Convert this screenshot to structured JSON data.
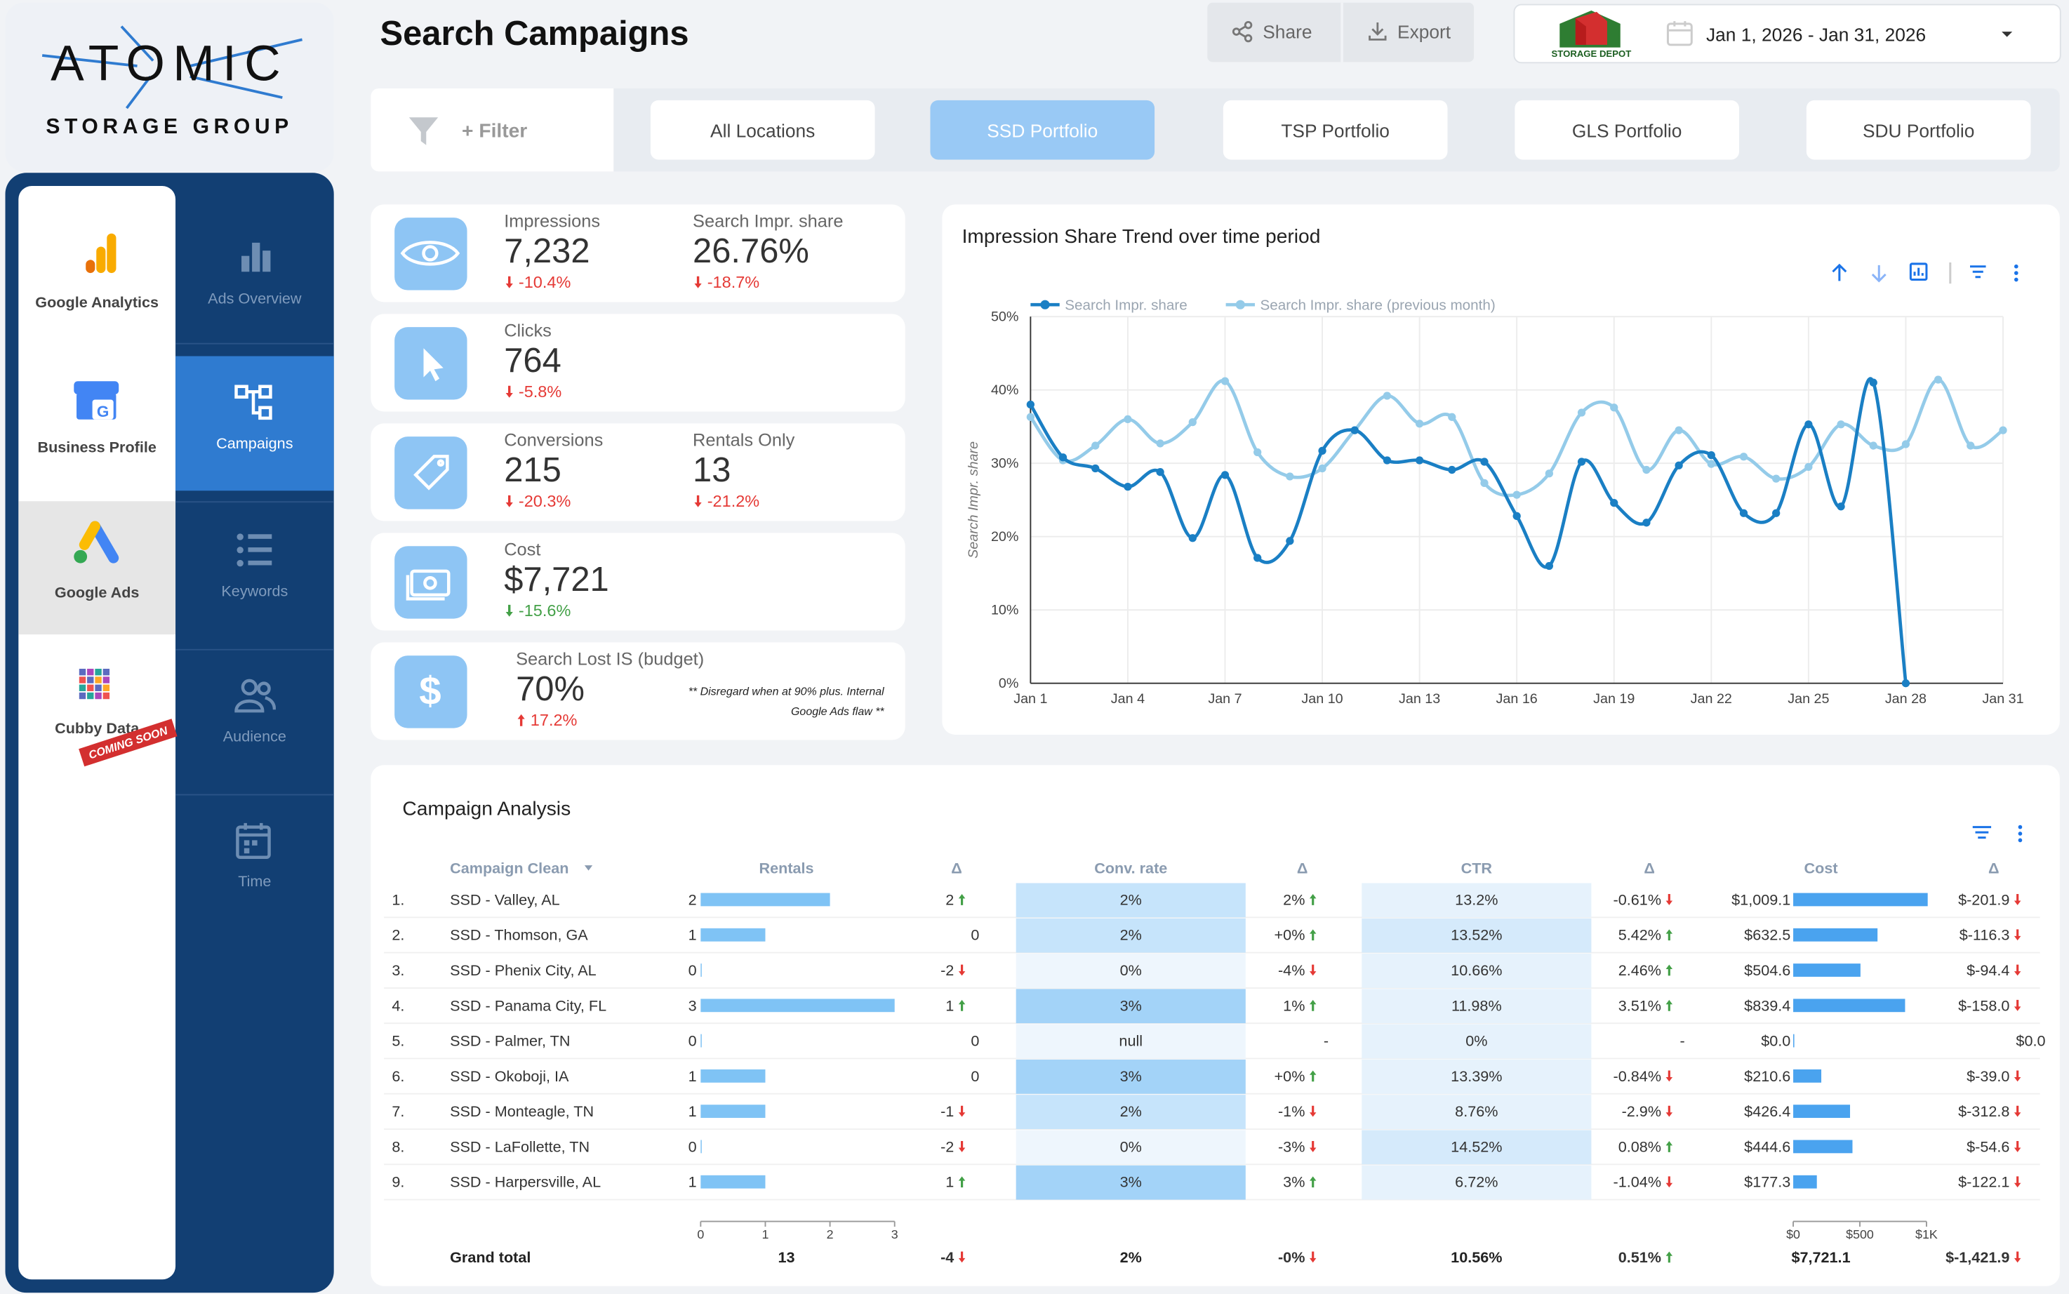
{
  "sidebar": {
    "logo": {
      "brand": "ATOMIC",
      "subtitle": "STORAGE GROUP"
    },
    "apps": [
      "Google Analytics",
      "Business Profile",
      "Google Ads",
      "Cubby Data"
    ],
    "badge": "COMING SOON",
    "nav": [
      "Ads Overview",
      "Campaigns",
      "Keywords",
      "Audience",
      "Time"
    ]
  },
  "header": {
    "title": "Search Campaigns",
    "share": "Share",
    "export": "Export",
    "client_logo": "STORAGE DEPOT",
    "date_range": "Jan 1, 2026 - Jan 31, 2026"
  },
  "filter": {
    "label": "+ Filter",
    "tabs": [
      "All Locations",
      "SSD Portfolio",
      "TSP Portfolio",
      "GLS Portfolio",
      "SDU Portfolio"
    ]
  },
  "kpi_cards": [
    {
      "metrics": [
        {
          "label": "Impressions",
          "value": "7,232",
          "change": "-10.4%",
          "change_color": "#e53935"
        },
        {
          "label": "Search Impr. share",
          "value": "26.76%",
          "change": "-18.7%",
          "change_color": "#e53935"
        }
      ]
    },
    {
      "metrics": [
        {
          "label": "Clicks",
          "value": "764",
          "change": "-5.8%",
          "change_color": "#e53935"
        }
      ]
    },
    {
      "metrics": [
        {
          "label": "Conversions",
          "value": "215",
          "change": "-20.3%",
          "change_color": "#e53935"
        },
        {
          "label": "Rentals Only",
          "value": "13",
          "change": "-21.2%",
          "change_color": "#e53935"
        }
      ]
    },
    {
      "metrics": [
        {
          "label": "Cost",
          "value": "$7,721",
          "change": "-15.6%",
          "change_color": "#43a047"
        }
      ]
    },
    {
      "metrics": [
        {
          "label": "Search Lost IS (budget)",
          "value": "70%",
          "change": "17.2%",
          "change_color": "#e53935"
        }
      ],
      "note": [
        "** Disregard when at 90% plus. Internal",
        "Google Ads flaw **"
      ]
    }
  ],
  "trend_chart": {
    "type": "line",
    "title": "Impression Share Trend over time period",
    "y_label": "Search Impr. share",
    "categories": [
      "Jan 1",
      null,
      null,
      "Jan 4",
      null,
      null,
      "Jan 7",
      null,
      null,
      "Jan 10",
      null,
      null,
      "Jan 13",
      null,
      null,
      "Jan 16",
      null,
      null,
      "Jan 19",
      null,
      null,
      "Jan 22",
      null,
      null,
      "Jan 25",
      null,
      null,
      "Jan 28",
      null,
      null,
      "Jan 31"
    ],
    "series": [
      {
        "name": "Search Impr. share",
        "color": "#1a7fc4",
        "values": [
          38.0,
          30.8,
          29.3,
          26.8,
          28.8,
          19.8,
          28.4,
          17.1,
          19.4,
          31.7,
          34.5,
          30.4,
          30.4,
          29.1,
          30.2,
          22.8,
          16.0,
          30.2,
          24.6,
          21.9,
          29.7,
          31.1,
          23.2,
          23.2,
          35.3,
          24.1,
          41.0,
          0,
          null,
          null,
          null
        ]
      },
      {
        "name": "Search Impr. share (previous month)",
        "color": "#94cbe9",
        "values": [
          36.3,
          30.4,
          32.4,
          36.0,
          32.7,
          35.6,
          41.2,
          31.5,
          28.2,
          29.3,
          34.5,
          39.2,
          35.4,
          36.3,
          27.3,
          25.7,
          28.6,
          36.9,
          37.6,
          29.1,
          34.5,
          29.9,
          30.9,
          27.9,
          29.5,
          35.3,
          32.4,
          32.6,
          41.4,
          32.4,
          34.5
        ]
      }
    ],
    "ylim": [
      0,
      50
    ],
    "yticks": [
      {
        "value": 0,
        "label": "0%"
      },
      {
        "value": 10,
        "label": "10%"
      },
      {
        "value": 20,
        "label": "20%"
      },
      {
        "value": 30,
        "label": "30%"
      },
      {
        "value": 40,
        "label": "40%"
      },
      {
        "value": 50,
        "label": "50%"
      }
    ],
    "grid": true
  },
  "table": {
    "title": "Campaign Analysis",
    "headers": [
      "Campaign Clean",
      "Rentals",
      "Δ",
      "Conv. rate",
      "Δ",
      "CTR",
      "Δ",
      "Cost",
      "Δ"
    ],
    "rows": [
      {
        "rank": "1.",
        "campaign": "SSD - Valley, AL",
        "rentals": 2,
        "rentals_delta": "2",
        "conv_rate": "2%",
        "conv_rate_delta": "2%",
        "ctr": "13.2%",
        "ctr_delta": "-0.61%",
        "cost": 1009.1,
        "cost_label": "$1,009.1",
        "cost_delta": "$-201.9"
      },
      {
        "rank": "2.",
        "campaign": "SSD - Thomson, GA",
        "rentals": 1,
        "rentals_delta": "0",
        "conv_rate": "2%",
        "conv_rate_delta": "+0%",
        "ctr": "13.52%",
        "ctr_delta": "5.42%",
        "cost": 632.5,
        "cost_label": "$632.5",
        "cost_delta": "$-116.3"
      },
      {
        "rank": "3.",
        "campaign": "SSD - Phenix City, AL",
        "rentals": 0,
        "rentals_delta": "-2",
        "conv_rate": "0%",
        "conv_rate_delta": "-4%",
        "ctr": "10.66%",
        "ctr_delta": "2.46%",
        "cost": 504.6,
        "cost_label": "$504.6",
        "cost_delta": "$-94.4"
      },
      {
        "rank": "4.",
        "campaign": "SSD - Panama City, FL",
        "rentals": 3,
        "rentals_delta": "1",
        "conv_rate": "3%",
        "conv_rate_delta": "1%",
        "ctr": "11.98%",
        "ctr_delta": "3.51%",
        "cost": 839.4,
        "cost_label": "$839.4",
        "cost_delta": "$-158.0"
      },
      {
        "rank": "5.",
        "campaign": "SSD - Palmer, TN",
        "rentals": 0,
        "rentals_delta": "0",
        "conv_rate": "null",
        "conv_rate_delta": "-",
        "ctr": "0%",
        "ctr_delta": "-",
        "cost": 0,
        "cost_label": "$0.0",
        "cost_delta": "$0.0"
      },
      {
        "rank": "6.",
        "campaign": "SSD - Okoboji, IA",
        "rentals": 1,
        "rentals_delta": "0",
        "conv_rate": "3%",
        "conv_rate_delta": "+0%",
        "ctr": "13.39%",
        "ctr_delta": "-0.84%",
        "cost": 210.6,
        "cost_label": "$210.6",
        "cost_delta": "$-39.0"
      },
      {
        "rank": "7.",
        "campaign": "SSD - Monteagle, TN",
        "rentals": 1,
        "rentals_delta": "-1",
        "conv_rate": "2%",
        "conv_rate_delta": "-1%",
        "ctr": "8.76%",
        "ctr_delta": "-2.9%",
        "cost": 426.4,
        "cost_label": "$426.4",
        "cost_delta": "$-312.8"
      },
      {
        "rank": "8.",
        "campaign": "SSD - LaFollette, TN",
        "rentals": 0,
        "rentals_delta": "-2",
        "conv_rate": "0%",
        "conv_rate_delta": "-3%",
        "ctr": "14.52%",
        "ctr_delta": "0.08%",
        "cost": 444.6,
        "cost_label": "$444.6",
        "cost_delta": "$-54.6"
      },
      {
        "rank": "9.",
        "campaign": "SSD - Harpersville, AL",
        "rentals": 1,
        "rentals_delta": "1",
        "conv_rate": "3%",
        "conv_rate_delta": "3%",
        "ctr": "6.72%",
        "ctr_delta": "-1.04%",
        "cost": 177.3,
        "cost_label": "$177.3",
        "cost_delta": "$-122.1"
      }
    ],
    "rentals_axis": {
      "lim": [
        0,
        3
      ],
      "ticks": [
        0,
        1,
        2,
        3
      ]
    },
    "cost_axis": {
      "lim": [
        0,
        1000
      ],
      "ticks": [
        {
          "value": 0,
          "label": "$0"
        },
        {
          "value": 500,
          "label": "$500"
        },
        {
          "value": 1000,
          "label": "$1K"
        }
      ]
    },
    "grand_total": {
      "label": "Grand total",
      "rentals": "13",
      "rentals_delta": "-4",
      "conv_rate": "2%",
      "conv_rate_delta": "-0%",
      "ctr": "10.56%",
      "ctr_delta": "0.51%",
      "cost": "$7,721.1",
      "cost_delta": "$-1,421.9"
    }
  }
}
